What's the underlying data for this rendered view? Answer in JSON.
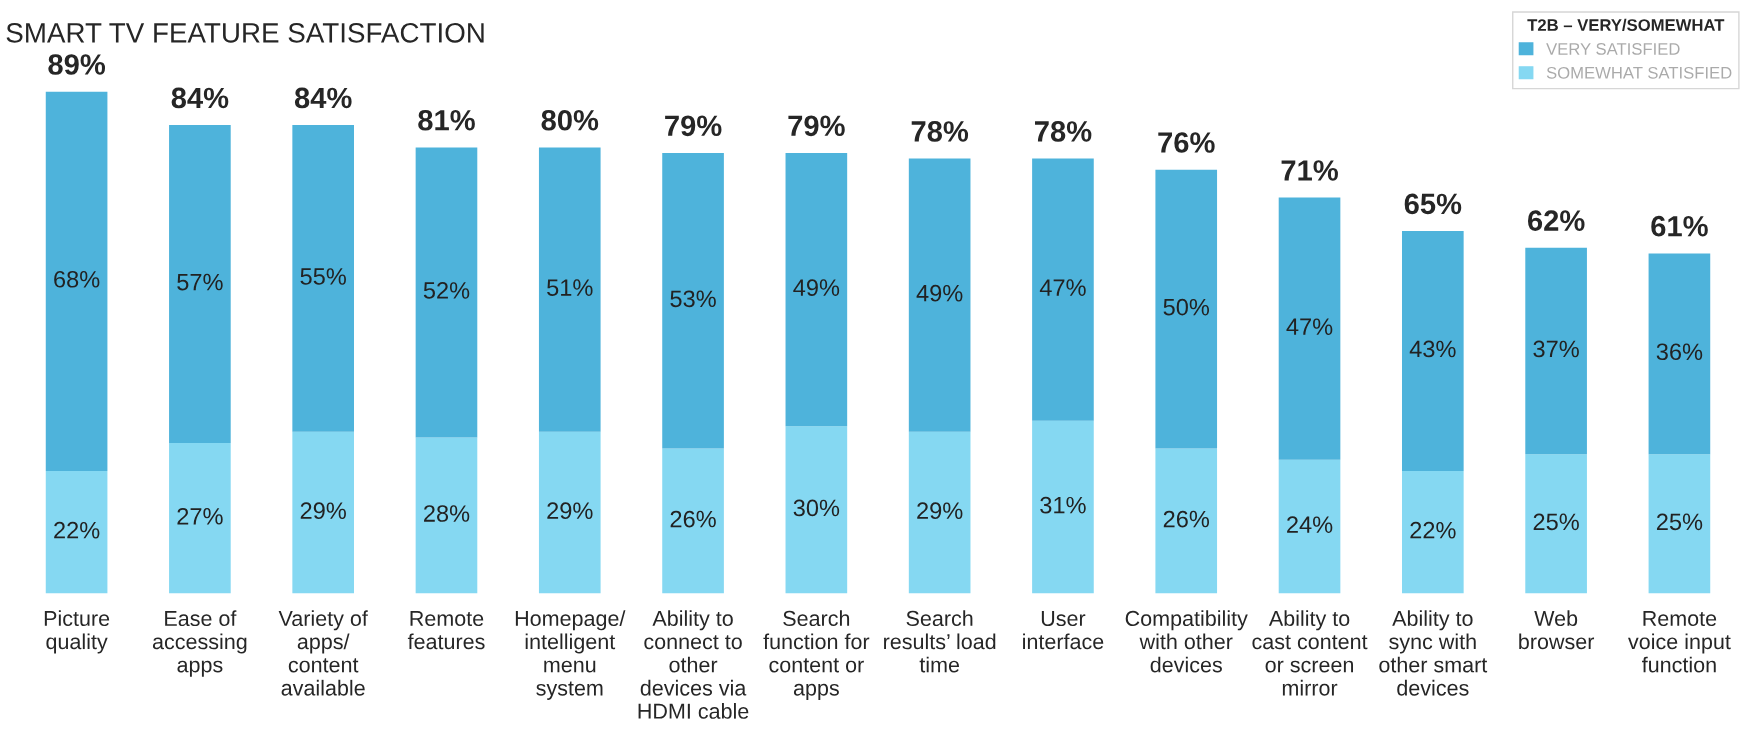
{
  "chart_data": {
    "type": "bar",
    "title": "SMART TV FEATURE SATISFACTION",
    "categories": [
      "Picture\nquality",
      "Ease of\naccessing\napps",
      "Variety of\napps/\ncontent\navailable",
      "Remote\nfeatures",
      "Homepage/\nintelligent\nmenu\nsystem",
      "Ability to\nconnect to\nother\ndevices via\nHDMI cable",
      "Search\nfunction for\ncontent or\napps",
      "Search\nresults’ load\ntime",
      "User\ninterface",
      "Compatibility\nwith other\ndevices",
      "Ability to\ncast content\nor screen\nmirror",
      "Ability to\nsync with\nother smart\ndevices",
      "Web\nbrowser",
      "Remote\nvoice input\nfunction"
    ],
    "stacked": true,
    "series": [
      {
        "name": "SOMEWHAT SATISFIED",
        "color": "#85d8f2",
        "values": [
          22,
          27,
          29,
          28,
          29,
          26,
          30,
          29,
          31,
          26,
          24,
          22,
          25,
          25
        ],
        "value_labels": [
          "22%",
          "27%",
          "29%",
          "28%",
          "29%",
          "26%",
          "30%",
          "29%",
          "31%",
          "26%",
          "24%",
          "22%",
          "25%",
          "25%"
        ]
      },
      {
        "name": "VERY SATISFIED",
        "color": "#4eb3db",
        "values": [
          68,
          57,
          55,
          52,
          51,
          53,
          49,
          49,
          47,
          50,
          47,
          43,
          37,
          36
        ],
        "value_labels": [
          "68%",
          "57%",
          "55%",
          "52%",
          "51%",
          "53%",
          "49%",
          "49%",
          "47%",
          "50%",
          "47%",
          "43%",
          "37%",
          "36%"
        ]
      }
    ],
    "totals": [
      "89%",
      "84%",
      "84%",
      "81%",
      "80%",
      "79%",
      "79%",
      "78%",
      "78%",
      "76%",
      "71%",
      "65%",
      "62%",
      "61%"
    ],
    "legend_title": "T2B – VERY/SOMEWHAT",
    "legend": "top right",
    "grid": false
  }
}
